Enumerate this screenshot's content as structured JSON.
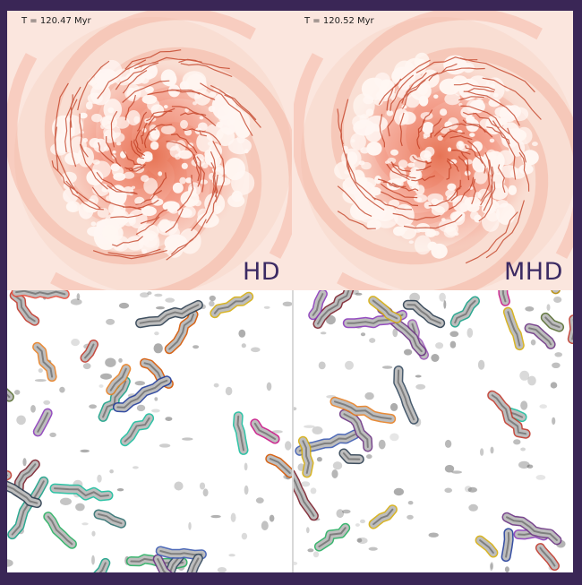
{
  "panels": {
    "top_left": {
      "time": "T = 120.47 Myr",
      "model": "HD"
    },
    "top_right": {
      "time": "T = 120.52 Myr",
      "model": "MHD"
    }
  },
  "colors": {
    "border": "#3a2656",
    "disk_base": "#fbe6de",
    "disk_dense": "#e0502a",
    "label": "#3b2a63"
  }
}
